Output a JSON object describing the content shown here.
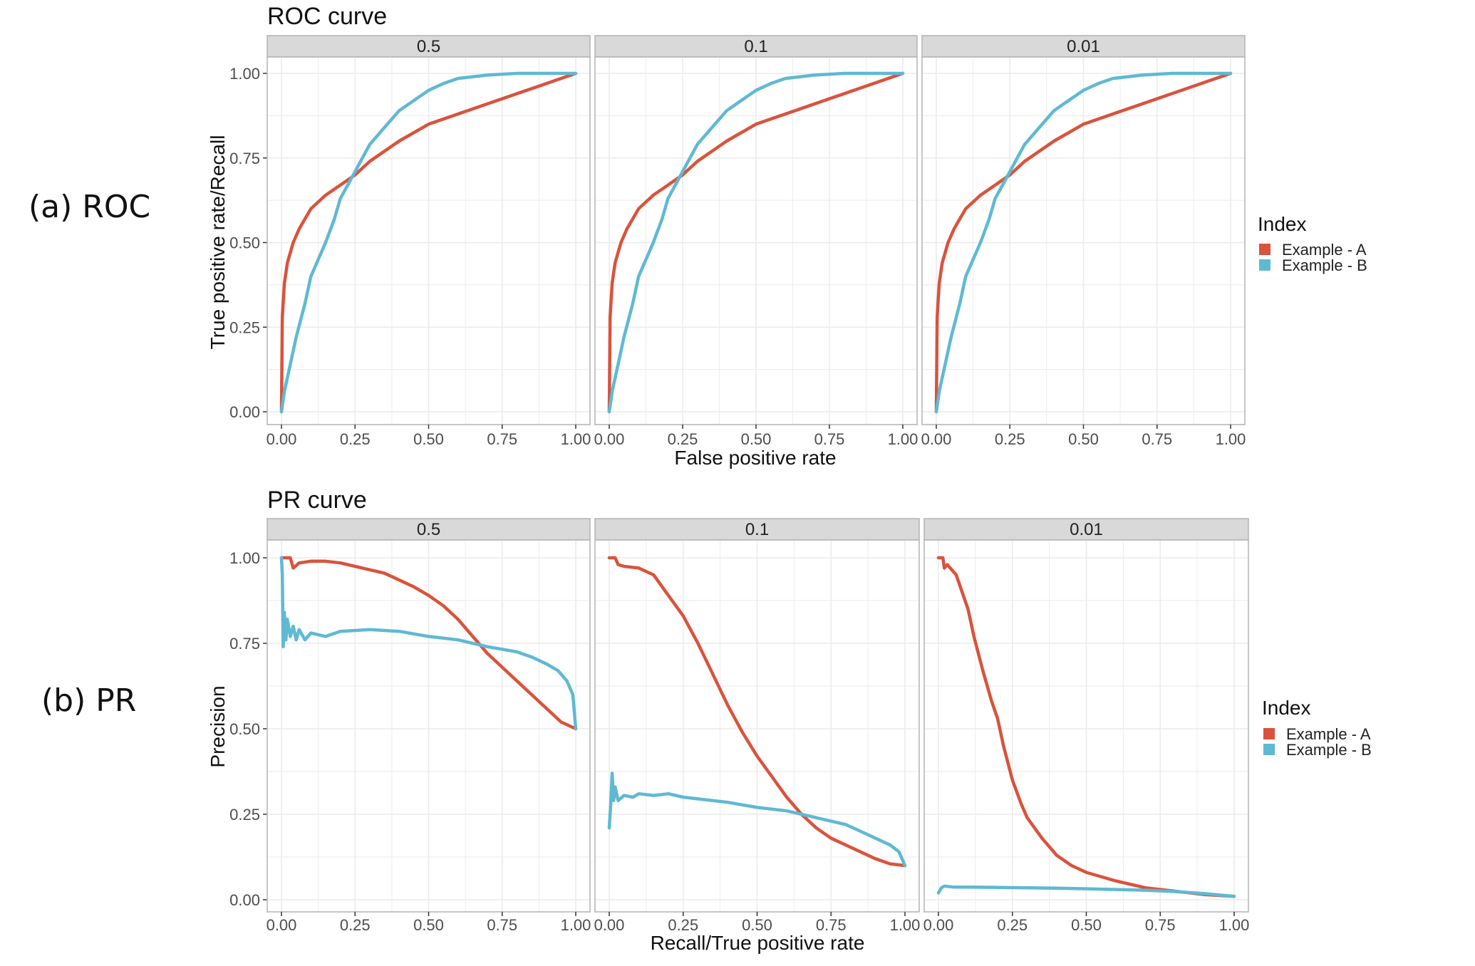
{
  "side_labels": {
    "roc": "(a) ROC",
    "pr": "(b) PR"
  },
  "colors": {
    "example_a": "#d9533c",
    "example_b": "#5fb9d3",
    "strip_bg": "#d9d9d9",
    "grid": "#ebebeb",
    "panel_border": "#b3b3b3"
  },
  "chart_data": [
    {
      "type": "line",
      "title": "ROC curve",
      "xlabel": "False positive rate",
      "ylabel": "True positive rate/Recall",
      "xlim": [
        0,
        1
      ],
      "ylim": [
        0,
        1
      ],
      "xticks": [
        "0.00",
        "0.25",
        "0.50",
        "0.75",
        "1.00"
      ],
      "yticks": [
        "0.00",
        "0.25",
        "0.50",
        "0.75",
        "1.00"
      ],
      "grid": true,
      "legend": {
        "title": "Index",
        "position": "right",
        "entries": [
          "Example - A",
          "Example - B"
        ]
      },
      "facets": [
        {
          "label": "0.5",
          "series": [
            {
              "name": "Example - A",
              "x": [
                0,
                0.003,
                0.01,
                0.02,
                0.04,
                0.06,
                0.08,
                0.1,
                0.15,
                0.2,
                0.25,
                0.3,
                0.4,
                0.5,
                0.6,
                0.7,
                0.8,
                0.9,
                1.0
              ],
              "y": [
                0,
                0.28,
                0.38,
                0.44,
                0.5,
                0.54,
                0.57,
                0.6,
                0.64,
                0.67,
                0.7,
                0.74,
                0.8,
                0.85,
                0.88,
                0.91,
                0.94,
                0.97,
                1.0
              ]
            },
            {
              "name": "Example - B",
              "x": [
                0,
                0.01,
                0.03,
                0.05,
                0.08,
                0.1,
                0.13,
                0.15,
                0.18,
                0.2,
                0.25,
                0.3,
                0.35,
                0.4,
                0.45,
                0.5,
                0.55,
                0.6,
                0.7,
                0.8,
                0.9,
                1.0
              ],
              "y": [
                0,
                0.06,
                0.14,
                0.22,
                0.32,
                0.4,
                0.46,
                0.5,
                0.57,
                0.63,
                0.71,
                0.79,
                0.84,
                0.89,
                0.92,
                0.95,
                0.97,
                0.985,
                0.995,
                1.0,
                1.0,
                1.0
              ]
            }
          ]
        },
        {
          "label": "0.1",
          "series": [
            {
              "name": "Example - A",
              "x": [
                0,
                0.003,
                0.01,
                0.02,
                0.04,
                0.06,
                0.08,
                0.1,
                0.15,
                0.2,
                0.25,
                0.3,
                0.4,
                0.5,
                0.6,
                0.7,
                0.8,
                0.9,
                1.0
              ],
              "y": [
                0,
                0.28,
                0.38,
                0.44,
                0.5,
                0.54,
                0.57,
                0.6,
                0.64,
                0.67,
                0.7,
                0.74,
                0.8,
                0.85,
                0.88,
                0.91,
                0.94,
                0.97,
                1.0
              ]
            },
            {
              "name": "Example - B",
              "x": [
                0,
                0.01,
                0.03,
                0.05,
                0.08,
                0.1,
                0.13,
                0.15,
                0.18,
                0.2,
                0.25,
                0.3,
                0.35,
                0.4,
                0.45,
                0.5,
                0.55,
                0.6,
                0.7,
                0.8,
                0.9,
                1.0
              ],
              "y": [
                0,
                0.06,
                0.14,
                0.22,
                0.32,
                0.4,
                0.46,
                0.5,
                0.57,
                0.63,
                0.71,
                0.79,
                0.84,
                0.89,
                0.92,
                0.95,
                0.97,
                0.985,
                0.995,
                1.0,
                1.0,
                1.0
              ]
            }
          ]
        },
        {
          "label": "0.01",
          "series": [
            {
              "name": "Example - A",
              "x": [
                0,
                0.003,
                0.01,
                0.02,
                0.04,
                0.06,
                0.08,
                0.1,
                0.15,
                0.2,
                0.25,
                0.3,
                0.4,
                0.5,
                0.6,
                0.7,
                0.8,
                0.9,
                1.0
              ],
              "y": [
                0,
                0.28,
                0.38,
                0.44,
                0.5,
                0.54,
                0.57,
                0.6,
                0.64,
                0.67,
                0.7,
                0.74,
                0.8,
                0.85,
                0.88,
                0.91,
                0.94,
                0.97,
                1.0
              ]
            },
            {
              "name": "Example - B",
              "x": [
                0,
                0.01,
                0.03,
                0.05,
                0.08,
                0.1,
                0.13,
                0.15,
                0.18,
                0.2,
                0.25,
                0.3,
                0.35,
                0.4,
                0.45,
                0.5,
                0.55,
                0.6,
                0.7,
                0.8,
                0.9,
                1.0
              ],
              "y": [
                0,
                0.06,
                0.14,
                0.22,
                0.32,
                0.4,
                0.46,
                0.5,
                0.57,
                0.63,
                0.71,
                0.79,
                0.84,
                0.89,
                0.92,
                0.95,
                0.97,
                0.985,
                0.995,
                1.0,
                1.0,
                1.0
              ]
            }
          ]
        }
      ]
    },
    {
      "type": "line",
      "title": "PR curve",
      "xlabel": "Recall/True positive rate",
      "ylabel": "Precision",
      "xlim": [
        0,
        1
      ],
      "ylim": [
        0,
        1
      ],
      "xticks": [
        "0.00",
        "0.25",
        "0.50",
        "0.75",
        "1.00"
      ],
      "yticks": [
        "0.00",
        "0.25",
        "0.50",
        "0.75",
        "1.00"
      ],
      "grid": true,
      "legend": {
        "title": "Index",
        "position": "right",
        "entries": [
          "Example - A",
          "Example - B"
        ]
      },
      "facets": [
        {
          "label": "0.5",
          "series": [
            {
              "name": "Example - A",
              "x": [
                0,
                0.03,
                0.04,
                0.06,
                0.1,
                0.15,
                0.2,
                0.25,
                0.3,
                0.35,
                0.4,
                0.45,
                0.5,
                0.55,
                0.6,
                0.65,
                0.7,
                0.75,
                0.8,
                0.85,
                0.9,
                0.95,
                1.0
              ],
              "y": [
                1.0,
                1.0,
                0.97,
                0.985,
                0.99,
                0.99,
                0.985,
                0.975,
                0.965,
                0.955,
                0.935,
                0.915,
                0.89,
                0.86,
                0.82,
                0.77,
                0.72,
                0.68,
                0.64,
                0.6,
                0.56,
                0.52,
                0.5
              ]
            },
            {
              "name": "Example - B",
              "x": [
                0,
                0.003,
                0.006,
                0.01,
                0.015,
                0.02,
                0.03,
                0.04,
                0.05,
                0.06,
                0.08,
                0.1,
                0.15,
                0.2,
                0.3,
                0.4,
                0.5,
                0.6,
                0.7,
                0.8,
                0.85,
                0.9,
                0.94,
                0.97,
                0.99,
                1.0
              ],
              "y": [
                1.0,
                0.95,
                0.74,
                0.84,
                0.76,
                0.82,
                0.77,
                0.8,
                0.76,
                0.79,
                0.76,
                0.78,
                0.77,
                0.785,
                0.79,
                0.785,
                0.77,
                0.76,
                0.74,
                0.725,
                0.71,
                0.69,
                0.67,
                0.64,
                0.6,
                0.5
              ]
            }
          ]
        },
        {
          "label": "0.1",
          "series": [
            {
              "name": "Example - A",
              "x": [
                0,
                0.02,
                0.03,
                0.05,
                0.1,
                0.15,
                0.2,
                0.25,
                0.3,
                0.35,
                0.4,
                0.45,
                0.5,
                0.55,
                0.6,
                0.65,
                0.7,
                0.75,
                0.8,
                0.85,
                0.9,
                0.95,
                1.0
              ],
              "y": [
                1.0,
                1.0,
                0.98,
                0.975,
                0.97,
                0.95,
                0.89,
                0.83,
                0.75,
                0.66,
                0.57,
                0.49,
                0.42,
                0.36,
                0.3,
                0.25,
                0.21,
                0.18,
                0.16,
                0.14,
                0.12,
                0.105,
                0.1
              ]
            },
            {
              "name": "Example - B",
              "x": [
                0,
                0.005,
                0.01,
                0.015,
                0.02,
                0.03,
                0.05,
                0.08,
                0.1,
                0.15,
                0.2,
                0.25,
                0.3,
                0.4,
                0.5,
                0.6,
                0.7,
                0.8,
                0.85,
                0.9,
                0.95,
                0.98,
                1.0
              ],
              "y": [
                0.21,
                0.28,
                0.37,
                0.29,
                0.33,
                0.29,
                0.305,
                0.3,
                0.31,
                0.305,
                0.31,
                0.3,
                0.295,
                0.285,
                0.27,
                0.26,
                0.24,
                0.22,
                0.2,
                0.18,
                0.16,
                0.14,
                0.1
              ]
            }
          ]
        },
        {
          "label": "0.01",
          "series": [
            {
              "name": "Example - A",
              "x": [
                0,
                0.015,
                0.02,
                0.03,
                0.06,
                0.1,
                0.12,
                0.15,
                0.18,
                0.2,
                0.22,
                0.25,
                0.28,
                0.3,
                0.35,
                0.4,
                0.45,
                0.5,
                0.6,
                0.7,
                0.8,
                0.9,
                1.0
              ],
              "y": [
                1.0,
                1.0,
                0.97,
                0.98,
                0.95,
                0.85,
                0.77,
                0.67,
                0.58,
                0.53,
                0.45,
                0.35,
                0.28,
                0.24,
                0.18,
                0.13,
                0.1,
                0.08,
                0.055,
                0.035,
                0.025,
                0.015,
                0.01
              ]
            },
            {
              "name": "Example - B",
              "x": [
                0,
                0.01,
                0.02,
                0.05,
                0.1,
                0.2,
                0.3,
                0.4,
                0.5,
                0.6,
                0.7,
                0.8,
                0.9,
                1.0
              ],
              "y": [
                0.02,
                0.035,
                0.04,
                0.037,
                0.037,
                0.036,
                0.035,
                0.034,
                0.032,
                0.03,
                0.028,
                0.024,
                0.018,
                0.01
              ]
            }
          ]
        }
      ]
    }
  ]
}
